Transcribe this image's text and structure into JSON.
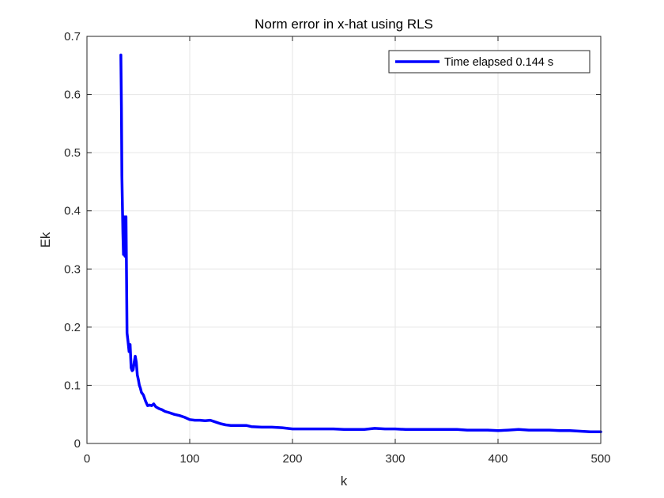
{
  "chart_data": {
    "type": "line",
    "title": "Norm error in x-hat using RLS",
    "xlabel": "k",
    "ylabel": "Ek",
    "xlim": [
      0,
      500
    ],
    "ylim": [
      0,
      0.7
    ],
    "xticks": [
      "0",
      "100",
      "200",
      "300",
      "400",
      "500"
    ],
    "yticks": [
      "0",
      "0.1",
      "0.2",
      "0.3",
      "0.4",
      "0.5",
      "0.6",
      "0.7"
    ],
    "grid": true,
    "legend_location": "top-right",
    "colors": {
      "series": "#0000ff",
      "grid": "#e6e6e6",
      "axis": "#262626"
    },
    "series": [
      {
        "name": "Time elapsed 0.144 s",
        "x": [
          33,
          33.5,
          34,
          35,
          35.5,
          36,
          37,
          38,
          39,
          40,
          41,
          42,
          43,
          44,
          45,
          46,
          47,
          48,
          49,
          50,
          51,
          52,
          53,
          55,
          57,
          59,
          61,
          63,
          65,
          67,
          70,
          73,
          76,
          80,
          85,
          90,
          95,
          100,
          105,
          110,
          115,
          120,
          125,
          130,
          135,
          140,
          145,
          150,
          155,
          160,
          170,
          180,
          190,
          200,
          210,
          220,
          230,
          240,
          250,
          260,
          270,
          280,
          290,
          300,
          310,
          320,
          330,
          340,
          350,
          360,
          370,
          380,
          390,
          400,
          410,
          420,
          430,
          440,
          450,
          460,
          470,
          480,
          490,
          500
        ],
        "values": [
          0.668,
          0.58,
          0.46,
          0.36,
          0.325,
          0.39,
          0.322,
          0.39,
          0.19,
          0.175,
          0.158,
          0.17,
          0.13,
          0.125,
          0.127,
          0.14,
          0.15,
          0.14,
          0.118,
          0.11,
          0.1,
          0.095,
          0.088,
          0.083,
          0.073,
          0.065,
          0.066,
          0.065,
          0.068,
          0.063,
          0.06,
          0.058,
          0.055,
          0.053,
          0.05,
          0.048,
          0.045,
          0.041,
          0.04,
          0.04,
          0.039,
          0.04,
          0.037,
          0.034,
          0.032,
          0.031,
          0.031,
          0.031,
          0.031,
          0.029,
          0.028,
          0.028,
          0.027,
          0.025,
          0.025,
          0.025,
          0.025,
          0.025,
          0.024,
          0.024,
          0.024,
          0.026,
          0.025,
          0.025,
          0.024,
          0.024,
          0.024,
          0.024,
          0.024,
          0.024,
          0.023,
          0.023,
          0.023,
          0.022,
          0.023,
          0.024,
          0.023,
          0.023,
          0.023,
          0.022,
          0.022,
          0.021,
          0.02,
          0.02
        ]
      }
    ]
  }
}
